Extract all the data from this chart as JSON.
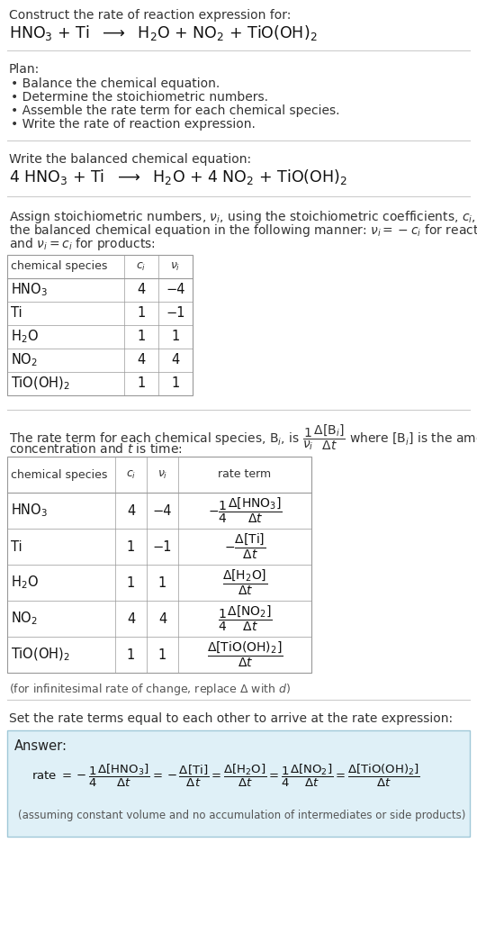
{
  "bg_color": "#ffffff",
  "light_blue_bg": "#dff0f7",
  "table_border": "#999999",
  "title_line1": "Construct the rate of reaction expression for:",
  "title_eq": "HNO$_3$ + Ti  $\\longrightarrow$  H$_2$O + NO$_2$ + TiO(OH)$_2$",
  "plan_header": "Plan:",
  "plan_items": [
    "• Balance the chemical equation.",
    "• Determine the stoichiometric numbers.",
    "• Assemble the rate term for each chemical species.",
    "• Write the rate of reaction expression."
  ],
  "balanced_header": "Write the balanced chemical equation:",
  "balanced_eq": "4 HNO$_3$ + Ti  $\\longrightarrow$  H$_2$O + 4 NO$_2$ + TiO(OH)$_2$",
  "stoich_header_lines": [
    "Assign stoichiometric numbers, $\\nu_i$, using the stoichiometric coefficients, $c_i$, from",
    "the balanced chemical equation in the following manner: $\\nu_i = -c_i$ for reactants",
    "and $\\nu_i = c_i$ for products:"
  ],
  "table1_headers": [
    "chemical species",
    "$c_i$",
    "$\\nu_i$"
  ],
  "table1_rows": [
    [
      "HNO$_3$",
      "4",
      "−4"
    ],
    [
      "Ti",
      "1",
      "−1"
    ],
    [
      "H$_2$O",
      "1",
      "1"
    ],
    [
      "NO$_2$",
      "4",
      "4"
    ],
    [
      "TiO(OH)$_2$",
      "1",
      "1"
    ]
  ],
  "rate_intro_line1": "The rate term for each chemical species, B$_i$, is $\\dfrac{1}{\\nu_i}\\dfrac{\\Delta[\\mathrm{B}_i]}{\\Delta t}$ where [B$_i$] is the amount",
  "rate_intro_line2": "concentration and $t$ is time:",
  "table2_headers": [
    "chemical species",
    "$c_i$",
    "$\\nu_i$",
    "rate term"
  ],
  "table2_rows": [
    [
      "HNO$_3$",
      "4",
      "−4",
      "$-\\dfrac{1}{4}\\dfrac{\\Delta[\\mathrm{HNO}_3]}{\\Delta t}$"
    ],
    [
      "Ti",
      "1",
      "−1",
      "$-\\dfrac{\\Delta[\\mathrm{Ti}]}{\\Delta t}$"
    ],
    [
      "H$_2$O",
      "1",
      "1",
      "$\\dfrac{\\Delta[\\mathrm{H_2O}]}{\\Delta t}$"
    ],
    [
      "NO$_2$",
      "4",
      "4",
      "$\\dfrac{1}{4}\\dfrac{\\Delta[\\mathrm{NO_2}]}{\\Delta t}$"
    ],
    [
      "TiO(OH)$_2$",
      "1",
      "1",
      "$\\dfrac{\\Delta[\\mathrm{TiO(OH)_2}]}{\\Delta t}$"
    ]
  ],
  "infinitesimal_note": "(for infinitesimal rate of change, replace Δ with $d$)",
  "set_equal_text": "Set the rate terms equal to each other to arrive at the rate expression:",
  "answer_label": "Answer:",
  "answer_eq": "rate $= -\\dfrac{1}{4}\\dfrac{\\Delta[\\mathrm{HNO_3}]}{\\Delta t} = -\\dfrac{\\Delta[\\mathrm{Ti}]}{\\Delta t} = \\dfrac{\\Delta[\\mathrm{H_2O}]}{\\Delta t} = \\dfrac{1}{4}\\dfrac{\\Delta[\\mathrm{NO_2}]}{\\Delta t} = \\dfrac{\\Delta[\\mathrm{TiO(OH)_2}]}{\\Delta t}$",
  "assuming_note": "(assuming constant volume and no accumulation of intermediates or side products)"
}
